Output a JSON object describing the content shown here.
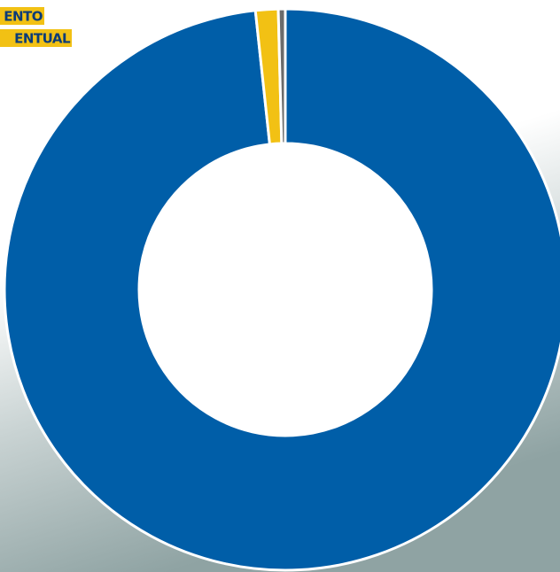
{
  "chart_data": {
    "type": "donut",
    "annotations": [
      "ENTO",
      "ENTUAL"
    ],
    "categories": [
      null,
      null,
      null
    ],
    "values": [
      98.3,
      1.3,
      0.4
    ],
    "colors": [
      "#005ea8",
      "#f2c114",
      "#6b6b6b"
    ]
  }
}
